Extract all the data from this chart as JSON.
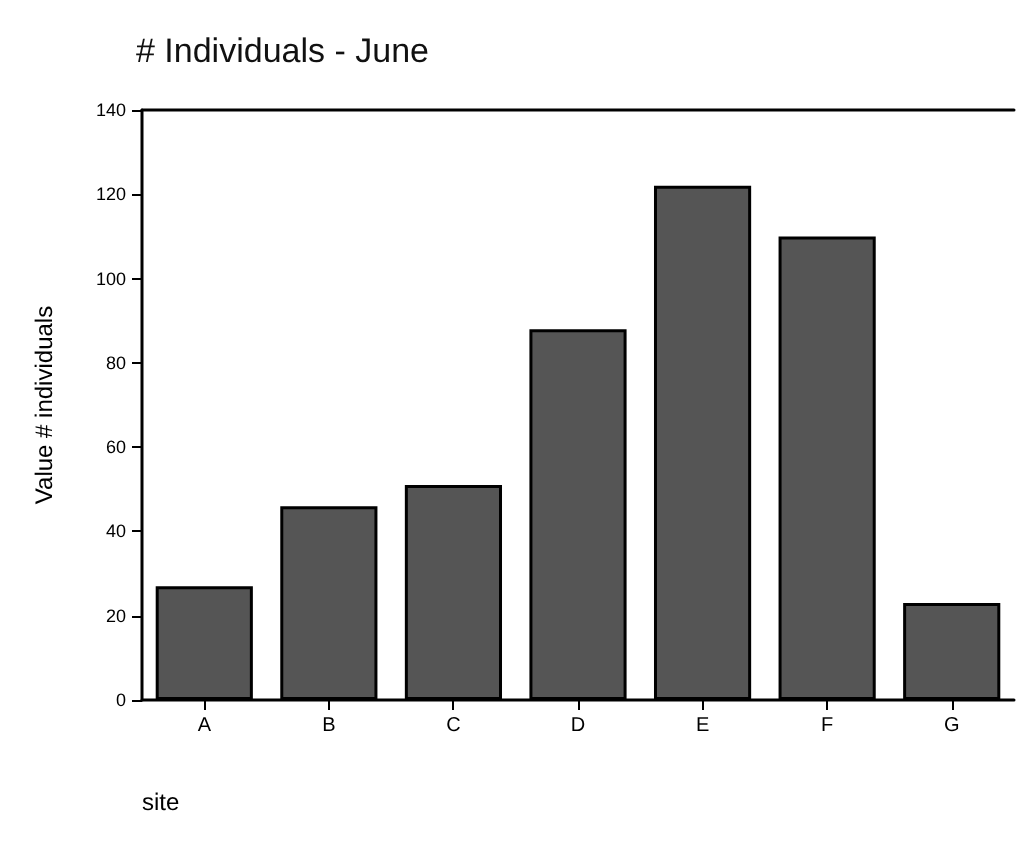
{
  "chart_data": {
    "type": "bar",
    "title": "# Individuals - June",
    "xlabel": "site",
    "ylabel": "Value # individuals",
    "categories": [
      "A",
      "B",
      "C",
      "D",
      "E",
      "F",
      "G"
    ],
    "values": [
      27,
      46,
      51,
      88,
      122,
      110,
      23
    ],
    "color": "#555555",
    "ylim": [
      0,
      140
    ],
    "yticks": [
      0,
      20,
      40,
      60,
      80,
      100,
      120,
      140
    ],
    "grid": false
  }
}
